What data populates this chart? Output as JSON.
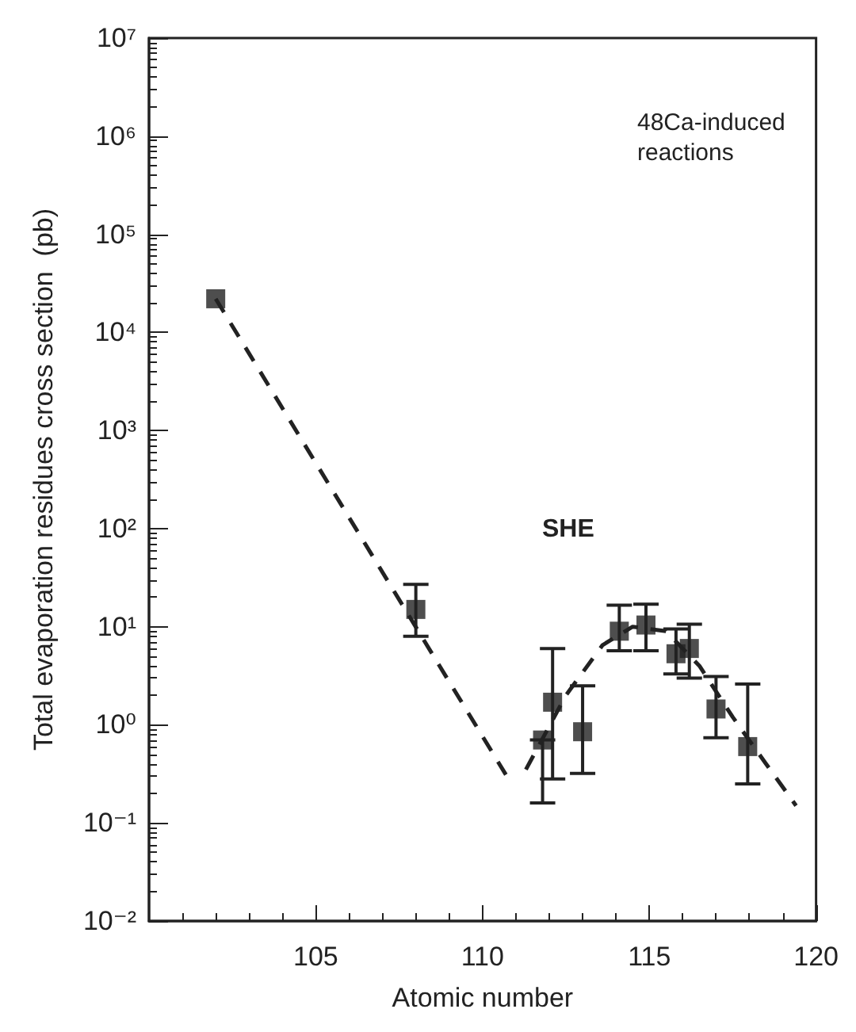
{
  "chart_data": {
    "type": "scatter",
    "xlabel": "Atomic number",
    "ylabel": "Total evaporation residues cross section  (pb)",
    "annotations": [
      "48Ca-induced reactions",
      "SHE"
    ],
    "series": [
      {
        "type": "scatter",
        "color": "#222222",
        "marker": "square",
        "x": [
          102,
          108,
          111.8,
          112.1,
          113.0,
          114.1,
          114.9,
          115.8,
          116.2,
          117.0,
          117.95
        ],
        "values": [
          22000,
          15,
          0.7,
          1.7,
          0.85,
          9,
          10.4,
          5.3,
          6.0,
          1.45,
          0.6
        ],
        "errors": [
          null,
          [
            8,
            27
          ],
          [
            0.16,
            0.7
          ],
          [
            0.28,
            6.0
          ],
          [
            0.32,
            2.5
          ],
          [
            5.7,
            16.6
          ],
          [
            5.7,
            17
          ],
          [
            3.3,
            9.5
          ],
          [
            3.0,
            10.6
          ],
          [
            0.74,
            3.1
          ],
          [
            0.25,
            2.6
          ]
        ]
      },
      {
        "type": "line",
        "color": "#222222",
        "marker": "none",
        "line_style": "dashed",
        "x": [
          102,
          110.7
        ],
        "values": [
          22000,
          0.31
        ]
      },
      {
        "type": "line",
        "color": "#222222",
        "marker": "none",
        "line_style": "dashed",
        "x": [
          111.3,
          112.5,
          113.6,
          114.5,
          115.5,
          116.5,
          117.5,
          118.5,
          119.4
        ],
        "values": [
          0.35,
          2,
          6.5,
          10,
          9,
          4,
          1.2,
          0.4,
          0.15
        ]
      }
    ],
    "log": "y",
    "xlim": [
      100,
      120
    ],
    "xticks": [
      105,
      110,
      115,
      120
    ],
    "ylim": [
      0.01,
      10000000
    ],
    "yticks": [
      {
        "value": 0.01,
        "label": "10⁻²"
      },
      {
        "value": 0.1,
        "label": "10⁻¹"
      },
      {
        "value": 1,
        "label": "10⁰"
      },
      {
        "value": 10,
        "label": "10¹"
      },
      {
        "value": 100,
        "label": "10²"
      },
      {
        "value": 1000,
        "label": "10³"
      },
      {
        "value": 10000,
        "label": "10⁴"
      },
      {
        "value": 100000,
        "label": "10⁵"
      },
      {
        "value": 1000000,
        "label": "10⁶"
      },
      {
        "value": 10000000,
        "label": "10⁷"
      }
    ],
    "grid": false
  }
}
